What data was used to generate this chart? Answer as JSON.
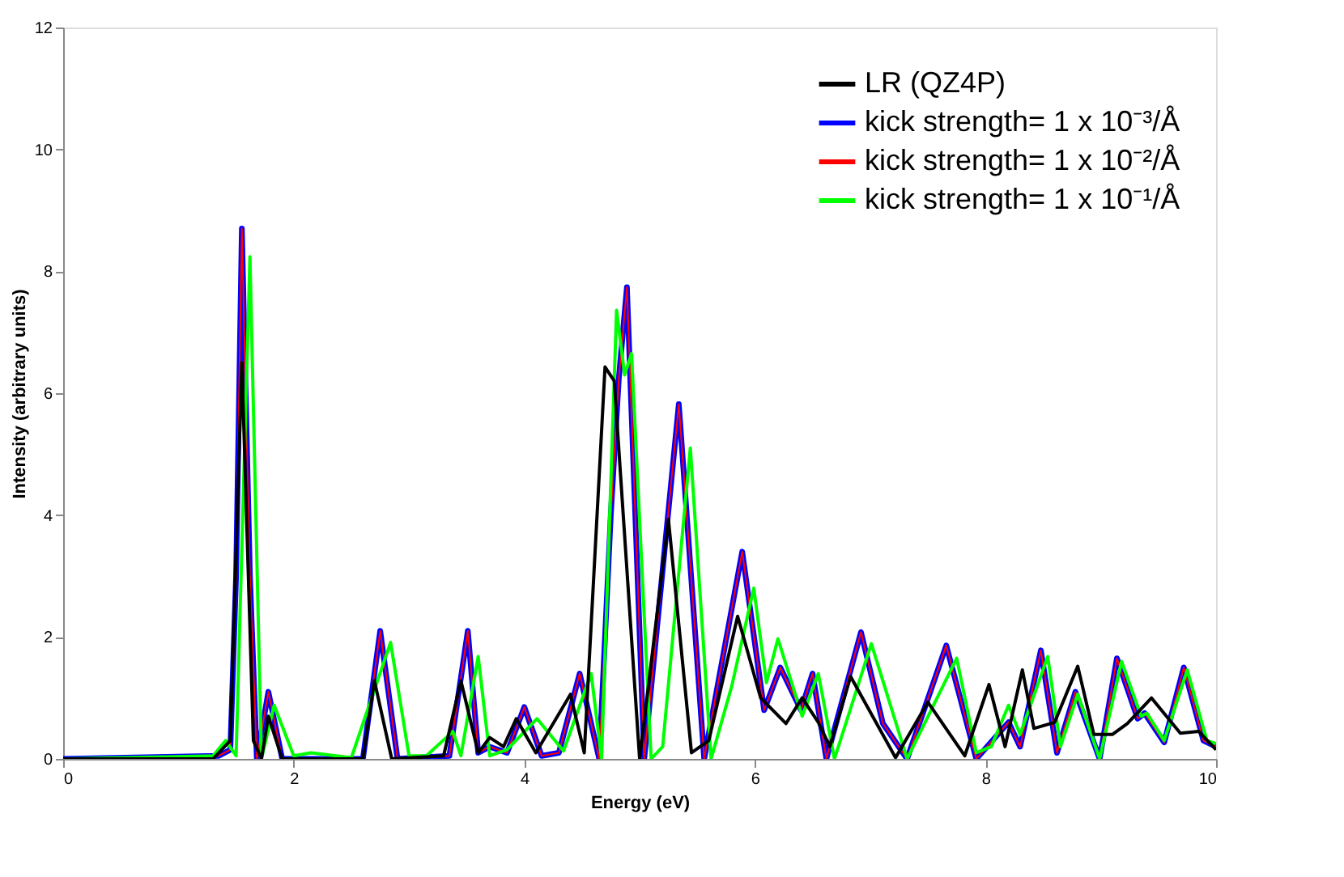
{
  "chart_data": {
    "type": "line",
    "xlabel": "Energy (eV)",
    "ylabel": "Intensity (arbitrary units)",
    "xlim": [
      0,
      10
    ],
    "ylim": [
      0,
      12
    ],
    "xticks": [
      0,
      2,
      4,
      6,
      8,
      10
    ],
    "yticks": [
      0,
      2,
      4,
      6,
      8,
      10,
      12
    ],
    "grid": false,
    "legend": "top right",
    "marker": "none",
    "line_style": "solid",
    "series": [
      {
        "name": "LR (QZ4P)",
        "color": "#000000",
        "x": [
          0,
          1.3,
          1.45,
          1.55,
          1.65,
          1.72,
          1.78,
          1.9,
          2.6,
          2.7,
          2.85,
          3.3,
          3.45,
          3.6,
          3.7,
          3.82,
          3.93,
          4.1,
          4.4,
          4.52,
          4.7,
          4.78,
          5.0,
          5.25,
          5.45,
          5.6,
          5.85,
          6.05,
          6.27,
          6.41,
          6.55,
          6.65,
          6.83,
          7.22,
          7.5,
          7.82,
          8.03,
          8.17,
          8.32,
          8.42,
          8.6,
          8.8,
          8.94,
          9.1,
          9.23,
          9.44,
          9.69,
          9.85,
          10
        ],
        "values": [
          0,
          0,
          0.3,
          6.5,
          0.3,
          0,
          0.7,
          0,
          0,
          1.28,
          0,
          0.05,
          1.28,
          0.1,
          0.35,
          0.2,
          0.66,
          0.1,
          1.06,
          0.1,
          6.43,
          6.2,
          0,
          3.93,
          0.1,
          0.3,
          2.34,
          1.0,
          0.58,
          1.0,
          0.6,
          0.2,
          1.35,
          0.02,
          0.93,
          0.05,
          1.22,
          0.2,
          1.46,
          0.5,
          0.6,
          1.52,
          0.4,
          0.4,
          0.58,
          1.0,
          0.42,
          0.45,
          0.15
        ]
      },
      {
        "name": "kick strength= 1 x 10⁻³/Å",
        "color": "#0000ff",
        "x": [
          0,
          1.35,
          1.45,
          1.5,
          1.55,
          1.62,
          1.68,
          1.78,
          1.9,
          2.6,
          2.75,
          2.9,
          3.35,
          3.51,
          3.6,
          3.7,
          3.85,
          4.0,
          4.15,
          4.3,
          4.48,
          4.65,
          4.75,
          4.82,
          4.89,
          5.04,
          5.34,
          5.56,
          5.89,
          6.08,
          6.22,
          6.4,
          6.5,
          6.62,
          6.92,
          7.11,
          7.32,
          7.66,
          7.92,
          8.2,
          8.3,
          8.48,
          8.62,
          8.78,
          8.99,
          9.14,
          9.32,
          9.38,
          9.55,
          9.72,
          9.89,
          10
        ],
        "values": [
          0,
          0.05,
          0.15,
          3.0,
          8.7,
          3.0,
          0,
          1.1,
          0,
          0,
          2.1,
          0,
          0.05,
          2.1,
          0.1,
          0.2,
          0.1,
          0.85,
          0.05,
          0.1,
          1.4,
          0,
          4.0,
          6.25,
          7.74,
          0,
          5.82,
          0,
          3.4,
          0.8,
          1.5,
          0.8,
          1.4,
          0,
          2.08,
          0.58,
          0,
          1.86,
          0,
          0.6,
          0.2,
          1.78,
          0.1,
          1.1,
          0,
          1.65,
          0.66,
          0.75,
          0.27,
          1.5,
          0.3,
          0.2
        ]
      },
      {
        "name": "kick strength= 1 x 10⁻²/Å",
        "color": "#ff0000",
        "x": [
          0,
          1.35,
          1.45,
          1.5,
          1.55,
          1.62,
          1.68,
          1.78,
          1.9,
          2.6,
          2.75,
          2.9,
          3.35,
          3.51,
          3.6,
          3.7,
          3.85,
          4.0,
          4.15,
          4.3,
          4.48,
          4.65,
          4.75,
          4.82,
          4.89,
          5.04,
          5.34,
          5.56,
          5.89,
          6.08,
          6.22,
          6.4,
          6.5,
          6.62,
          6.92,
          7.11,
          7.32,
          7.66,
          7.92,
          8.2,
          8.3,
          8.48,
          8.62,
          8.78,
          8.99,
          9.14,
          9.32,
          9.38,
          9.55,
          9.72,
          9.89,
          10
        ],
        "values": [
          0,
          0.05,
          0.15,
          3.0,
          8.7,
          3.0,
          0,
          1.1,
          0,
          0,
          2.1,
          0,
          0.05,
          2.1,
          0.1,
          0.2,
          0.1,
          0.85,
          0.05,
          0.1,
          1.4,
          0,
          4.0,
          6.25,
          7.74,
          0,
          5.82,
          0,
          3.4,
          0.8,
          1.5,
          0.8,
          1.4,
          0,
          2.08,
          0.58,
          0,
          1.86,
          0,
          0.6,
          0.2,
          1.78,
          0.1,
          1.1,
          0,
          1.65,
          0.66,
          0.75,
          0.27,
          1.5,
          0.3,
          0.2
        ]
      },
      {
        "name": "kick strength= 1 x 10⁻¹/Å",
        "color": "#00ff00",
        "x": [
          0,
          1.3,
          1.41,
          1.5,
          1.62,
          1.72,
          1.83,
          2.0,
          2.15,
          2.5,
          2.84,
          3.0,
          3.15,
          3.38,
          3.45,
          3.6,
          3.7,
          3.85,
          4.11,
          4.34,
          4.58,
          4.67,
          4.8,
          4.87,
          4.93,
          5.1,
          5.2,
          5.44,
          5.62,
          5.8,
          5.99,
          6.1,
          6.2,
          6.41,
          6.55,
          6.69,
          7.01,
          7.32,
          7.75,
          7.92,
          8.05,
          8.2,
          8.3,
          8.54,
          8.65,
          8.8,
          8.99,
          9.18,
          9.35,
          9.4,
          9.55,
          9.75,
          9.92,
          10
        ],
        "values": [
          0,
          0.05,
          0.3,
          0.05,
          8.24,
          0,
          0.88,
          0.05,
          0.1,
          0.02,
          1.91,
          0.05,
          0.05,
          0.45,
          0.05,
          1.68,
          0.05,
          0.15,
          0.66,
          0.13,
          1.4,
          0,
          7.36,
          6.3,
          6.65,
          0,
          0.2,
          5.1,
          0,
          1.2,
          2.8,
          1.25,
          1.97,
          0.7,
          1.4,
          0,
          1.89,
          0,
          1.65,
          0.1,
          0.2,
          0.88,
          0.4,
          1.68,
          0.2,
          1.06,
          0,
          1.6,
          0.7,
          0.75,
          0.3,
          1.46,
          0.3,
          0.25
        ]
      }
    ]
  }
}
